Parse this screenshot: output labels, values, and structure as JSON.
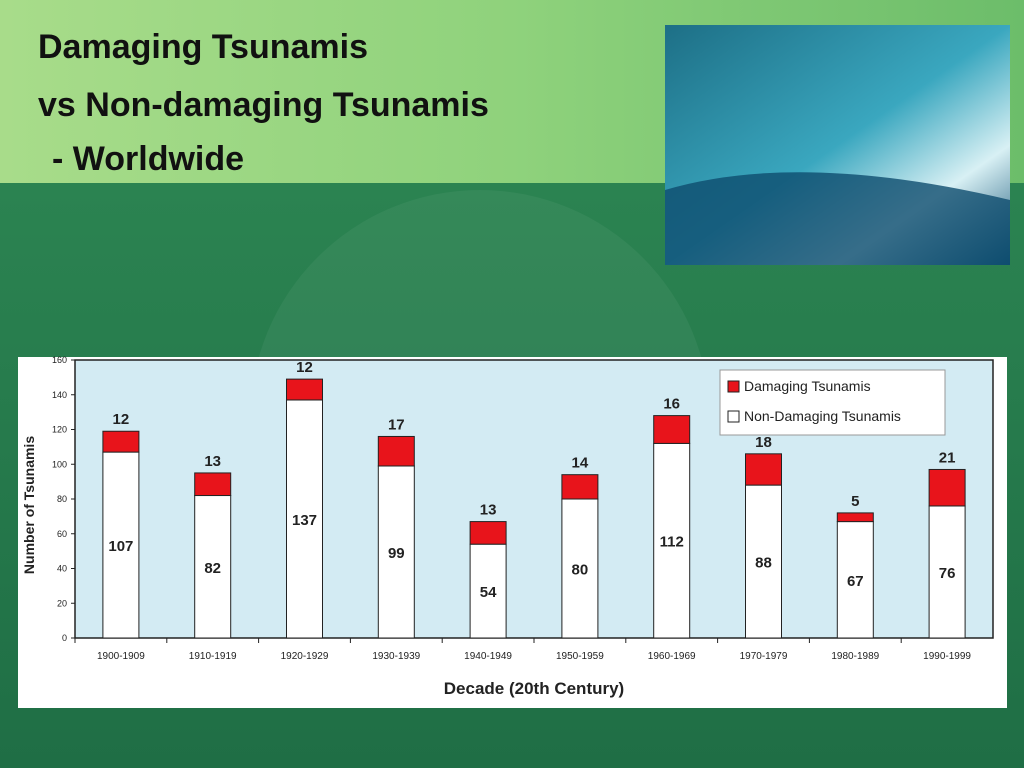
{
  "chart_data": {
    "type": "stacked_bar",
    "title": [
      "Damaging Tsunamis",
      "vs Non-damaging Tsunamis",
      "- Worldwide"
    ],
    "categories": [
      "1900-1909",
      "1910-1919",
      "1920-1929",
      "1930-1939",
      "1940-1949",
      "1950-1959",
      "1960-1969",
      "1970-1979",
      "1980-1989",
      "1990-1999"
    ],
    "series": [
      {
        "name": "Non-Damaging Tsunamis",
        "color": "#ffffff",
        "values": [
          107,
          82,
          137,
          99,
          54,
          80,
          112,
          88,
          67,
          76
        ]
      },
      {
        "name": "Damaging Tsunamis",
        "color": "#e8141b",
        "values": [
          12,
          13,
          12,
          17,
          13,
          14,
          16,
          18,
          5,
          21
        ]
      }
    ],
    "ylim": [
      0,
      160
    ],
    "yticks": [
      0,
      20,
      40,
      60,
      80,
      100,
      120,
      140,
      160
    ],
    "y_label": "Number of Tsunamis",
    "x_label": "Decade (20th Century)",
    "legend": "top-right"
  }
}
